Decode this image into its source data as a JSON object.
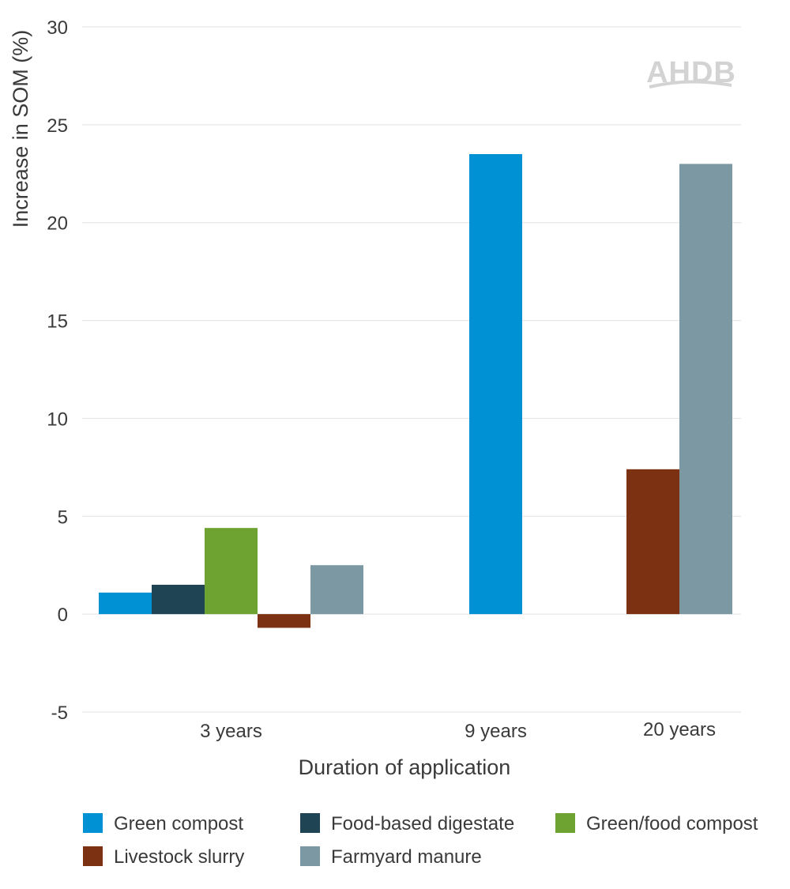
{
  "chart_data": {
    "type": "bar",
    "title": "",
    "xlabel": "Duration of application",
    "ylabel": "Increase in SOM (%)",
    "ylim": [
      -5,
      30
    ],
    "yticks": [
      -5,
      0,
      5,
      10,
      15,
      20,
      25,
      30
    ],
    "grid": true,
    "legend_position": "bottom",
    "categories": [
      "3 years",
      "9 years",
      "20 years"
    ],
    "series": [
      {
        "name": "Green compost",
        "color": "#0090d4",
        "values": [
          1.1,
          23.5,
          null
        ]
      },
      {
        "name": "Food-based digestate",
        "color": "#1f4454",
        "values": [
          1.5,
          null,
          null
        ]
      },
      {
        "name": "Green/food compost",
        "color": "#6ea331",
        "values": [
          4.4,
          null,
          null
        ]
      },
      {
        "name": "Livestock slurry",
        "color": "#7b3112",
        "values": [
          -0.7,
          null,
          7.4
        ]
      },
      {
        "name": "Farmyard manure",
        "color": "#7c99a3",
        "values": [
          2.5,
          null,
          23.0
        ]
      }
    ]
  },
  "logo": {
    "text": "AHDB",
    "color": "#d3d3d3"
  }
}
